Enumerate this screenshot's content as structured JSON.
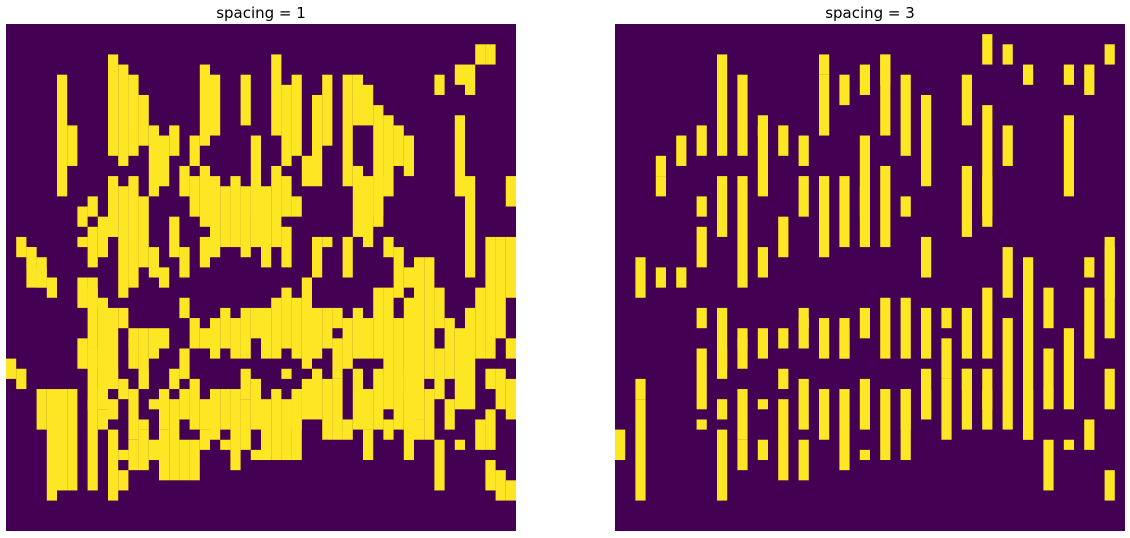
{
  "colors": {
    "background": "#440154",
    "line": "#fde725"
  },
  "chart_data": [
    {
      "type": "heatmap",
      "title": "spacing = 1",
      "rows": 50,
      "cols": 50,
      "segments": [
        [
          1,
          34,
          36
        ],
        [
          3,
          24,
          26
        ],
        [
          3,
          36,
          40
        ],
        [
          4,
          25,
          27
        ],
        [
          4,
          36,
          47
        ],
        [
          5,
          5,
          17
        ],
        [
          5,
          36,
          46
        ],
        [
          6,
          10,
          14
        ],
        [
          6,
          36,
          46
        ],
        [
          7,
          18,
          20
        ],
        [
          7,
          21,
          22
        ],
        [
          7,
          25,
          28
        ],
        [
          7,
          31,
          34
        ],
        [
          8,
          17,
          19
        ],
        [
          8,
          20,
          24
        ],
        [
          8,
          25,
          28
        ],
        [
          8,
          26,
          32
        ],
        [
          8,
          32,
          38
        ],
        [
          8,
          37,
          46
        ],
        [
          9,
          19,
          23
        ],
        [
          9,
          27,
          37
        ],
        [
          9,
          38,
          40
        ],
        [
          10,
          3,
          13
        ],
        [
          10,
          15,
          21
        ],
        [
          10,
          28,
          35
        ],
        [
          10,
          37,
          39
        ],
        [
          10,
          40,
          47
        ],
        [
          11,
          4,
          14
        ],
        [
          11,
          16,
          27
        ],
        [
          11,
          35,
          37
        ],
        [
          11,
          42,
          43
        ],
        [
          11,
          44,
          46
        ],
        [
          12,
          5,
          13
        ],
        [
          12,
          15,
          26
        ],
        [
          12,
          31,
          34
        ],
        [
          12,
          36,
          41
        ],
        [
          12,
          41,
          44
        ],
        [
          13,
          7,
          12
        ],
        [
          13,
          17,
          24
        ],
        [
          13,
          30,
          36
        ],
        [
          13,
          39,
          40
        ],
        [
          13,
          40,
          44
        ],
        [
          14,
          10,
          17
        ],
        [
          14,
          22,
          25
        ],
        [
          14,
          30,
          33
        ],
        [
          14,
          37,
          38
        ],
        [
          14,
          41,
          43
        ],
        [
          15,
          11,
          16
        ],
        [
          15,
          24,
          26
        ],
        [
          15,
          30,
          32
        ],
        [
          15,
          36,
          40
        ],
        [
          15,
          40,
          45
        ],
        [
          16,
          10,
          13
        ],
        [
          16,
          19,
          23
        ],
        [
          16,
          34,
          36
        ],
        [
          16,
          37,
          45
        ],
        [
          17,
          14,
          17
        ],
        [
          17,
          22,
          25
        ],
        [
          17,
          27,
          29
        ],
        [
          17,
          32,
          35
        ],
        [
          17,
          36,
          39
        ],
        [
          17,
          41,
          45
        ],
        [
          18,
          11,
          14
        ],
        [
          18,
          15,
          19
        ],
        [
          18,
          29,
          32
        ],
        [
          18,
          35,
          40
        ],
        [
          18,
          41,
          45
        ],
        [
          19,
          4,
          12
        ],
        [
          19,
          14,
          20
        ],
        [
          19,
          21,
          24
        ],
        [
          19,
          30,
          32
        ],
        [
          19,
          37,
          40
        ],
        [
          19,
          40,
          42
        ],
        [
          20,
          5,
          11
        ],
        [
          20,
          15,
          23
        ],
        [
          20,
          29,
          33
        ],
        [
          20,
          36,
          41
        ],
        [
          21,
          16,
          22
        ],
        [
          21,
          28,
          32
        ],
        [
          21,
          36,
          40
        ],
        [
          21,
          41,
          42
        ],
        [
          22,
          15,
          22
        ],
        [
          22,
          29,
          33
        ],
        [
          22,
          36,
          44
        ],
        [
          23,
          5,
          10
        ],
        [
          23,
          16,
          23
        ],
        [
          23,
          28,
          33
        ],
        [
          23,
          34,
          37
        ],
        [
          23,
          37,
          42
        ],
        [
          24,
          11,
          19
        ],
        [
          24,
          16,
          22
        ],
        [
          24,
          28,
          31
        ],
        [
          24,
          35,
          40
        ],
        [
          24,
          42,
          43
        ],
        [
          25,
          16,
          24
        ],
        [
          25,
          28,
          33
        ],
        [
          25,
          37,
          43
        ],
        [
          26,
          3,
          11
        ],
        [
          26,
          14,
          22
        ],
        [
          26,
          27,
          33
        ],
        [
          26,
          36,
          43
        ],
        [
          27,
          6,
          14
        ],
        [
          27,
          15,
          19
        ],
        [
          27,
          20,
          24
        ],
        [
          27,
          26,
          32
        ],
        [
          27,
          34,
          35
        ],
        [
          27,
          37,
          43
        ],
        [
          28,
          5,
          13
        ],
        [
          28,
          17,
          19
        ],
        [
          28,
          27,
          33
        ],
        [
          28,
          36,
          43
        ],
        [
          29,
          13,
          16
        ],
        [
          29,
          25,
          34
        ],
        [
          29,
          35,
          39
        ],
        [
          30,
          7,
          16
        ],
        [
          30,
          21,
          25
        ],
        [
          30,
          28,
          33
        ],
        [
          30,
          34,
          39
        ],
        [
          31,
          5,
          12
        ],
        [
          31,
          21,
          22
        ],
        [
          31,
          28,
          32
        ],
        [
          31,
          35,
          41
        ],
        [
          32,
          28,
          30
        ],
        [
          32,
          31,
          35
        ],
        [
          32,
          35,
          41
        ],
        [
          33,
          5,
          16
        ],
        [
          33,
          21,
          25
        ],
        [
          33,
          29,
          34
        ],
        [
          33,
          39,
          41
        ],
        [
          34,
          5,
          10
        ],
        [
          34,
          14,
          21
        ],
        [
          34,
          28,
          33
        ],
        [
          34,
          34,
          40
        ],
        [
          35,
          6,
          10
        ],
        [
          35,
          15,
          22
        ],
        [
          35,
          29,
          33
        ],
        [
          35,
          36,
          40
        ],
        [
          35,
          40,
          43
        ],
        [
          36,
          8,
          19
        ],
        [
          36,
          15,
          20
        ],
        [
          36,
          26,
          33
        ],
        [
          36,
          34,
          40
        ],
        [
          37,
          9,
          17
        ],
        [
          37,
          21,
          23
        ],
        [
          37,
          26,
          38
        ],
        [
          37,
          39,
          41
        ],
        [
          38,
          10,
          14
        ],
        [
          38,
          22,
          27
        ],
        [
          38,
          29,
          40
        ],
        [
          39,
          11,
          15
        ],
        [
          39,
          24,
          26
        ],
        [
          39,
          27,
          37
        ],
        [
          39,
          34,
          43
        ],
        [
          40,
          23,
          39
        ],
        [
          40,
          39,
          41
        ],
        [
          41,
          23,
          35
        ],
        [
          41,
          36,
          41
        ],
        [
          42,
          26,
          30
        ],
        [
          42,
          32,
          37
        ],
        [
          42,
          41,
          46
        ],
        [
          43,
          29,
          35
        ],
        [
          43,
          37,
          40
        ],
        [
          44,
          9,
          17
        ],
        [
          44,
          30,
          38
        ],
        [
          44,
          41,
          42
        ],
        [
          45,
          15,
          25
        ],
        [
          45,
          28,
          38
        ],
        [
          46,
          26,
          33
        ],
        [
          46,
          39,
          42
        ],
        [
          47,
          21,
          33
        ],
        [
          47,
          34,
          36
        ],
        [
          47,
          43,
          46
        ],
        [
          48,
          21,
          31
        ],
        [
          48,
          34,
          38
        ],
        [
          48,
          44,
          47
        ],
        [
          49,
          15,
          18
        ],
        [
          49,
          21,
          27
        ],
        [
          49,
          31,
          33
        ],
        [
          49,
          35,
          39
        ],
        [
          49,
          45,
          47
        ],
        [
          0,
          33,
          35
        ],
        [
          42,
          5,
          7
        ],
        [
          45,
          4,
          7
        ],
        [
          44,
          4,
          6
        ],
        [
          46,
          2,
          4
        ],
        [
          47,
          2,
          4
        ],
        [
          1,
          21,
          23
        ],
        [
          2,
          22,
          24
        ],
        [
          3,
          23,
          26
        ],
        [
          2,
          22,
          26
        ],
        [
          13,
          34,
          36
        ],
        [
          10,
          34,
          36
        ],
        [
          9,
          36,
          38
        ],
        [
          9,
          32,
          34
        ],
        [
          12,
          30,
          32
        ],
        [
          11,
          28,
          30
        ],
        [
          28,
          36,
          40
        ],
        [
          47,
          38,
          42
        ]
      ]
    },
    {
      "type": "heatmap",
      "title": "spacing = 3",
      "rows": 50,
      "cols": 50,
      "segments": [
        [
          2,
          23,
          27
        ],
        [
          2,
          37,
          47
        ],
        [
          4,
          24,
          26
        ],
        [
          6,
          11,
          14
        ],
        [
          8,
          10,
          13
        ],
        [
          8,
          17,
          19
        ],
        [
          8,
          20,
          24
        ],
        [
          8,
          28,
          30
        ],
        [
          8,
          32,
          38
        ],
        [
          8,
          39,
          40
        ],
        [
          10,
          3,
          13
        ],
        [
          10,
          15,
          21
        ],
        [
          10,
          28,
          35
        ],
        [
          10,
          37,
          39
        ],
        [
          10,
          40,
          47
        ],
        [
          12,
          5,
          13
        ],
        [
          12,
          15,
          26
        ],
        [
          12,
          31,
          34
        ],
        [
          12,
          36,
          41
        ],
        [
          12,
          41,
          44
        ],
        [
          14,
          10,
          17
        ],
        [
          14,
          22,
          25
        ],
        [
          14,
          30,
          33
        ],
        [
          14,
          37,
          38
        ],
        [
          14,
          41,
          43
        ],
        [
          16,
          10,
          13
        ],
        [
          16,
          19,
          23
        ],
        [
          16,
          34,
          36
        ],
        [
          16,
          37,
          45
        ],
        [
          18,
          11,
          14
        ],
        [
          18,
          15,
          19
        ],
        [
          18,
          29,
          32
        ],
        [
          18,
          35,
          40
        ],
        [
          18,
          41,
          45
        ],
        [
          20,
          5,
          11
        ],
        [
          20,
          15,
          23
        ],
        [
          20,
          29,
          33
        ],
        [
          20,
          36,
          41
        ],
        [
          22,
          15,
          22
        ],
        [
          22,
          29,
          33
        ],
        [
          22,
          36,
          44
        ],
        [
          24,
          11,
          19
        ],
        [
          24,
          16,
          22
        ],
        [
          24,
          28,
          31
        ],
        [
          24,
          35,
          40
        ],
        [
          24,
          42,
          43
        ],
        [
          26,
          3,
          11
        ],
        [
          26,
          14,
          22
        ],
        [
          26,
          27,
          33
        ],
        [
          26,
          36,
          43
        ],
        [
          28,
          5,
          13
        ],
        [
          28,
          17,
          19
        ],
        [
          28,
          27,
          33
        ],
        [
          28,
          36,
          43
        ],
        [
          30,
          7,
          16
        ],
        [
          30,
          21,
          25
        ],
        [
          30,
          28,
          33
        ],
        [
          30,
          34,
          39
        ],
        [
          32,
          28,
          30
        ],
        [
          32,
          31,
          35
        ],
        [
          32,
          35,
          41
        ],
        [
          34,
          5,
          10
        ],
        [
          34,
          14,
          21
        ],
        [
          34,
          28,
          33
        ],
        [
          34,
          34,
          40
        ],
        [
          36,
          8,
          19
        ],
        [
          36,
          15,
          20
        ],
        [
          36,
          26,
          33
        ],
        [
          36,
          34,
          40
        ],
        [
          38,
          10,
          14
        ],
        [
          38,
          22,
          27
        ],
        [
          38,
          29,
          40
        ],
        [
          40,
          23,
          39
        ],
        [
          40,
          39,
          41
        ],
        [
          42,
          26,
          30
        ],
        [
          42,
          32,
          37
        ],
        [
          42,
          41,
          46
        ],
        [
          44,
          9,
          17
        ],
        [
          44,
          30,
          38
        ],
        [
          44,
          41,
          42
        ],
        [
          46,
          26,
          33
        ],
        [
          46,
          39,
          42
        ],
        [
          48,
          21,
          31
        ],
        [
          48,
          34,
          38
        ],
        [
          48,
          44,
          47
        ],
        [
          4,
          13,
          15
        ],
        [
          6,
          24,
          26
        ],
        [
          14,
          9,
          11
        ],
        [
          16,
          30,
          32
        ],
        [
          18,
          28,
          30
        ],
        [
          20,
          3,
          5
        ],
        [
          22,
          5,
          8
        ],
        [
          24,
          4,
          7
        ],
        [
          26,
          3,
          6
        ],
        [
          36,
          1,
          4
        ],
        [
          38,
          2,
          4
        ],
        [
          40,
          4,
          6
        ],
        [
          44,
          4,
          6
        ],
        [
          46,
          4,
          7
        ],
        [
          48,
          2,
          4
        ],
        [
          12,
          30,
          32
        ],
        [
          28,
          36,
          40
        ],
        [
          30,
          36,
          39
        ],
        [
          34,
          34,
          36
        ],
        [
          36,
          36,
          38
        ],
        [
          40,
          36,
          41
        ],
        [
          42,
          36,
          38
        ],
        [
          46,
          23,
          25
        ],
        [
          48,
          22,
          27
        ],
        [
          10,
          32,
          34
        ],
        [
          22,
          30,
          33
        ],
        [
          0,
          40,
          43
        ],
        [
          2,
          35,
          37
        ],
        [
          4,
          15,
          17
        ]
      ]
    }
  ]
}
